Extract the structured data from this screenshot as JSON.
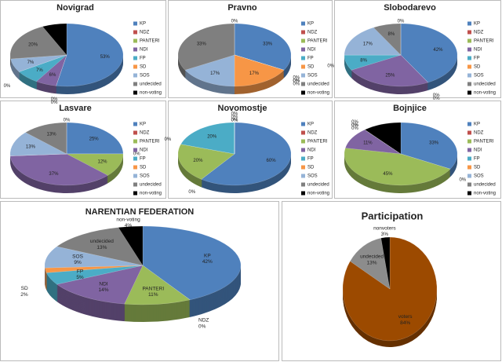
{
  "chart_data": [
    {
      "type": "pie",
      "title": "Novigrad",
      "legend": true,
      "categories": [
        "KP",
        "NDZ",
        "PANTERI",
        "NDI",
        "FP",
        "SD",
        "SOS",
        "undecided",
        "non-voting"
      ],
      "values": [
        53,
        0,
        0,
        6,
        7,
        0,
        7,
        20,
        7
      ],
      "value_labels": [
        "53%",
        "0%",
        "0%",
        "6%",
        "7%",
        "0%",
        "7%",
        "20%",
        null
      ],
      "colors": [
        "#4f81bd",
        "#c0504d",
        "#9bbb59",
        "#8064a2",
        "#4bacc6",
        "#f79646",
        "#95b3d7",
        "#7f7f7f",
        "#000000"
      ]
    },
    {
      "type": "pie",
      "title": "Pravno",
      "legend": true,
      "categories": [
        "KP",
        "NDZ",
        "PANTERI",
        "NDI",
        "FP",
        "SD",
        "SOS",
        "undecided",
        "non-voting"
      ],
      "values": [
        33,
        0,
        0,
        0,
        0,
        17,
        17,
        33,
        0
      ],
      "value_labels": [
        "33%",
        "0%",
        "0%",
        "0%",
        "0%",
        "17%",
        "17%",
        "33%",
        "0%"
      ],
      "colors": [
        "#4f81bd",
        "#c0504d",
        "#9bbb59",
        "#8064a2",
        "#4bacc6",
        "#f79646",
        "#95b3d7",
        "#7f7f7f",
        "#000000"
      ]
    },
    {
      "type": "pie",
      "title": "Slobodarevo",
      "legend": true,
      "categories": [
        "KP",
        "NDZ",
        "PANTERI",
        "NDI",
        "FP",
        "SD",
        "SOS",
        "undecided",
        "non-voting"
      ],
      "values": [
        42,
        0,
        0,
        25,
        8,
        0,
        17,
        8,
        0
      ],
      "value_labels": [
        "42%",
        "0%",
        "0%",
        "25%",
        "8%",
        "0%",
        "17%",
        "8%",
        "0%"
      ],
      "colors": [
        "#4f81bd",
        "#c0504d",
        "#9bbb59",
        "#8064a2",
        "#4bacc6",
        "#f79646",
        "#95b3d7",
        "#7f7f7f",
        "#000000"
      ]
    },
    {
      "type": "pie",
      "title": "Lasvare",
      "legend": true,
      "categories": [
        "KP",
        "NDZ",
        "PANTERI",
        "NDI",
        "FP",
        "SD",
        "SOS",
        "undecided",
        "non-voting"
      ],
      "values": [
        25,
        0,
        12,
        37,
        0,
        0,
        13,
        13,
        0
      ],
      "value_labels": [
        "25%",
        "0%",
        "12%",
        "37%",
        "0%",
        "0%",
        "13%",
        "13%",
        "0%"
      ],
      "colors": [
        "#4f81bd",
        "#c0504d",
        "#9bbb59",
        "#8064a2",
        "#4bacc6",
        "#f79646",
        "#95b3d7",
        "#7f7f7f",
        "#000000"
      ]
    },
    {
      "type": "pie",
      "title": "Novomostje",
      "legend": true,
      "categories": [
        "KP",
        "NDZ",
        "PANTERI",
        "NDI",
        "FP",
        "SD",
        "SOS",
        "undecided",
        "non-voting"
      ],
      "values": [
        60,
        0,
        20,
        0,
        20,
        0,
        0,
        0,
        0
      ],
      "value_labels": [
        "60%",
        "0%",
        "20%",
        "0%",
        "20%",
        "0%",
        "0%",
        "0%",
        "0%"
      ],
      "colors": [
        "#4f81bd",
        "#c0504d",
        "#9bbb59",
        "#8064a2",
        "#4bacc6",
        "#f79646",
        "#95b3d7",
        "#7f7f7f",
        "#000000"
      ]
    },
    {
      "type": "pie",
      "title": "Bojnjice",
      "legend": true,
      "categories": [
        "KP",
        "NDZ",
        "PANTERI",
        "NDI",
        "FP",
        "SD",
        "SOS",
        "undecided",
        "non-voting"
      ],
      "values": [
        33,
        0,
        45,
        11,
        0,
        0,
        0,
        0,
        11
      ],
      "value_labels": [
        "33%",
        "0%",
        "45%",
        "11%",
        "0%",
        "0%",
        "0%",
        "0%",
        null
      ],
      "colors": [
        "#4f81bd",
        "#c0504d",
        "#9bbb59",
        "#8064a2",
        "#4bacc6",
        "#f79646",
        "#95b3d7",
        "#7f7f7f",
        "#000000"
      ]
    },
    {
      "type": "pie",
      "title": "NARENTIAN FEDERATION",
      "legend": false,
      "categories": [
        "KP",
        "NDZ",
        "PANTERI",
        "NDI",
        "FP",
        "SD",
        "SOS",
        "undecided",
        "non-voting"
      ],
      "values": [
        42,
        0,
        11,
        14,
        5,
        2,
        9,
        13,
        4
      ],
      "value_labels": [
        "42%",
        "0%",
        "11%",
        "14%",
        "5%",
        "2%",
        "9%",
        "13%",
        "4%"
      ],
      "colors": [
        "#4f81bd",
        "#c0504d",
        "#9bbb59",
        "#8064a2",
        "#4bacc6",
        "#f79646",
        "#95b3d7",
        "#7f7f7f",
        "#000000"
      ]
    },
    {
      "type": "pie",
      "title": "Participation",
      "legend": false,
      "categories": [
        "voters",
        "undecided",
        "nonvoters"
      ],
      "values": [
        84,
        13,
        3
      ],
      "value_labels": [
        "84%",
        "13%",
        "3%"
      ],
      "colors": [
        "#9c4a00",
        "#8c8c8c",
        "#000000"
      ]
    }
  ]
}
